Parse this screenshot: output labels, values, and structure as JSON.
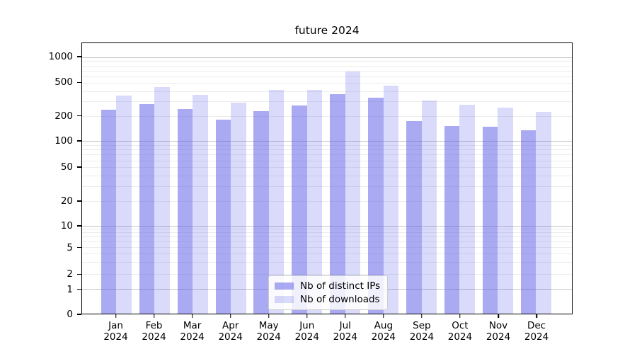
{
  "chart_data": {
    "type": "bar",
    "title": "future 2024",
    "year": "2024",
    "categories": [
      "Jan",
      "Feb",
      "Mar",
      "Apr",
      "May",
      "Jun",
      "Jul",
      "Aug",
      "Sep",
      "Oct",
      "Nov",
      "Dec"
    ],
    "series": [
      {
        "name": "Nb of distinct IPs",
        "color": "rgba(85,85,230,0.5)",
        "values": [
          240,
          279,
          242,
          182,
          230,
          271,
          368,
          334,
          174,
          151,
          149,
          135
        ]
      },
      {
        "name": "Nb of downloads",
        "color": "rgba(85,85,230,0.22)",
        "values": [
          355,
          450,
          360,
          293,
          415,
          410,
          680,
          462,
          305,
          272,
          255,
          224
        ]
      }
    ],
    "xlabel": "",
    "ylabel": "",
    "yscale": "symlog",
    "ylim": [
      0,
      1400
    ],
    "yticks": [
      0,
      1,
      2,
      5,
      10,
      20,
      50,
      100,
      200,
      500,
      1000
    ],
    "grid": {
      "horizontal_major": true,
      "horizontal_minor": true,
      "vertical": false
    },
    "legend_position": "lower center",
    "colors": {
      "bar_dark": "#aaaaf1",
      "bar_light": "#d9d9f9",
      "grid_major": "#c4c4c4",
      "grid_minor": "#ececec",
      "spine": "#000000",
      "background": "#ffffff"
    }
  }
}
